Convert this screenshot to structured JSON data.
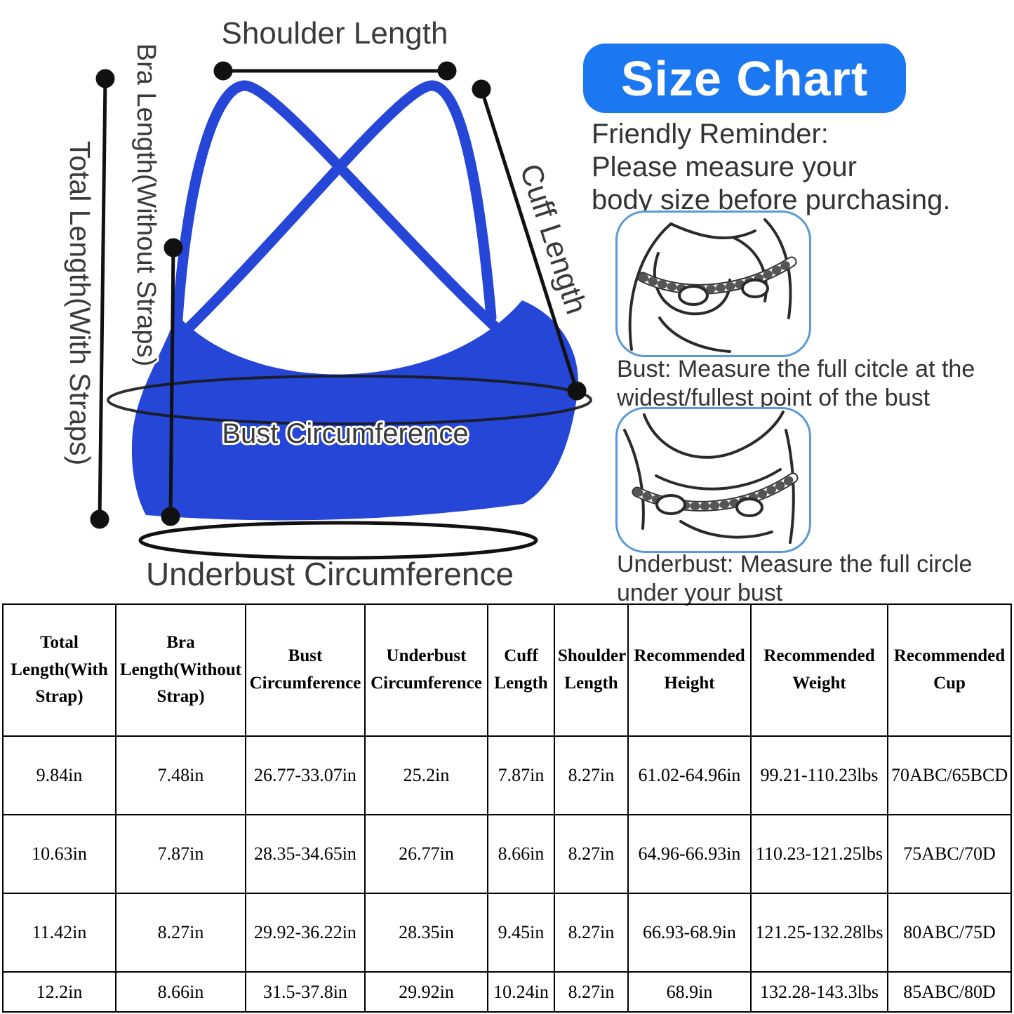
{
  "diagram": {
    "labels": {
      "shoulder_length": "Shoulder Length",
      "bra_length": "Bra Length(Without Straps)",
      "total_length": "Total Length(With Straps)",
      "cuff_length": "Cuff Length",
      "bust_circumference": "Bust Circumference",
      "underbust_circumference": "Underbust Circumference"
    },
    "bra_color": "#2546d6",
    "line_color": "#111111"
  },
  "info": {
    "title": "Size Chart",
    "title_bg_color": "#1b78f0",
    "title_text_color": "#ffffff",
    "reminder_line1": "Friendly Reminder:",
    "reminder_line2": "Please measure your",
    "reminder_line3": "body size before purchasing.",
    "bust_caption": "Bust: Measure the full citcle at the widest/fullest point of the bust",
    "underbust_caption": "Underbust: Measure the full circle under your bust",
    "illustration_border_color": "#5b9bd5"
  },
  "table": {
    "headers": [
      "Total Length(With Strap)",
      "Bra Length(Without Strap)",
      "Bust Circumference",
      "Underbust Circumference",
      "Cuff Length",
      "Shoulder Length",
      "Recommended Height",
      "Recommended Weight",
      "Recommended Cup"
    ],
    "rows": [
      [
        "9.84in",
        "7.48in",
        "26.77-33.07in",
        "25.2in",
        "7.87in",
        "8.27in",
        "61.02-64.96in",
        "99.21-110.23lbs",
        "70ABC/65BCD"
      ],
      [
        "10.63in",
        "7.87in",
        "28.35-34.65in",
        "26.77in",
        "8.66in",
        "8.27in",
        "64.96-66.93in",
        "110.23-121.25lbs",
        "75ABC/70D"
      ],
      [
        "11.42in",
        "8.27in",
        "29.92-36.22in",
        "28.35in",
        "9.45in",
        "8.27in",
        "66.93-68.9in",
        "121.25-132.28lbs",
        "80ABC/75D"
      ],
      [
        "12.2in",
        "8.66in",
        "31.5-37.8in",
        "29.92in",
        "10.24in",
        "8.27in",
        "68.9in",
        "132.28-143.3lbs",
        "85ABC/80D"
      ]
    ]
  }
}
